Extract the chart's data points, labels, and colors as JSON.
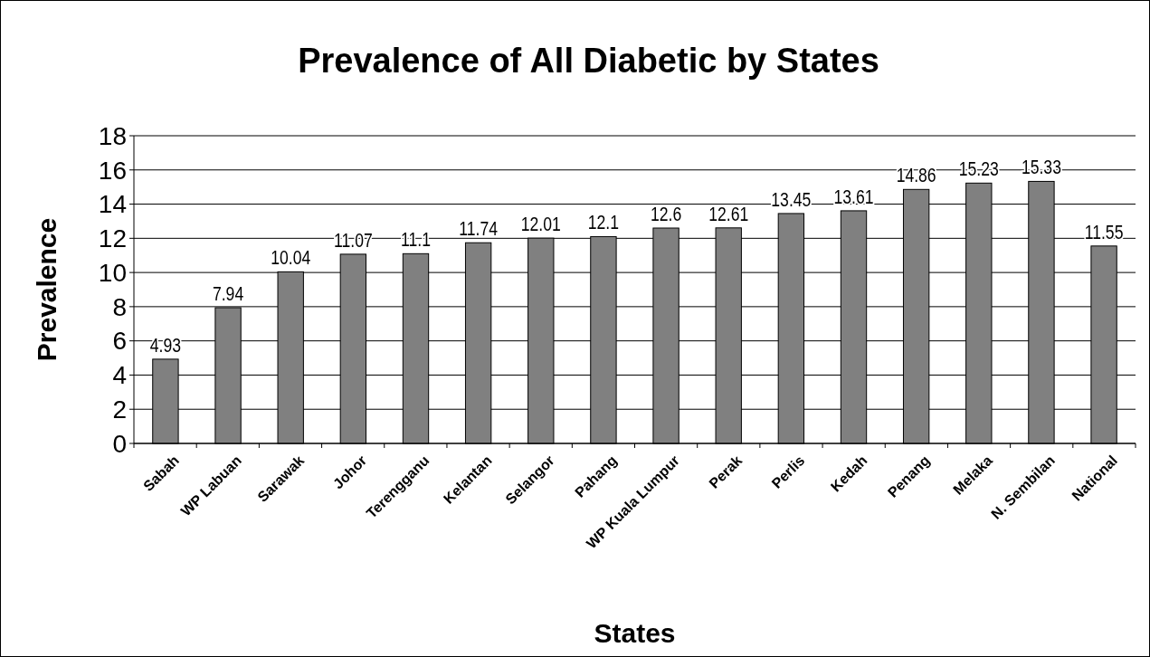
{
  "chart_data": {
    "type": "bar",
    "title": "Prevalence of All Diabetic by States",
    "xlabel": "States",
    "ylabel": "Prevalence",
    "categories": [
      "Sabah",
      "WP Labuan",
      "Sarawak",
      "Johor",
      "Terengganu",
      "Kelantan",
      "Selangor",
      "Pahang",
      "WP Kuala Lumpur",
      "Perak",
      "Perlis",
      "Kedah",
      "Penang",
      "Melaka",
      "N. Sembilan",
      "National"
    ],
    "values": [
      4.93,
      7.94,
      10.04,
      11.07,
      11.1,
      11.74,
      12.01,
      12.1,
      12.6,
      12.61,
      13.45,
      13.61,
      14.86,
      15.23,
      15.33,
      11.55
    ],
    "color": "#808080",
    "ylim": [
      0,
      18
    ],
    "yticks": [
      0,
      2,
      4,
      6,
      8,
      10,
      12,
      14,
      16,
      18
    ],
    "grid": "y",
    "data_labels": true
  }
}
